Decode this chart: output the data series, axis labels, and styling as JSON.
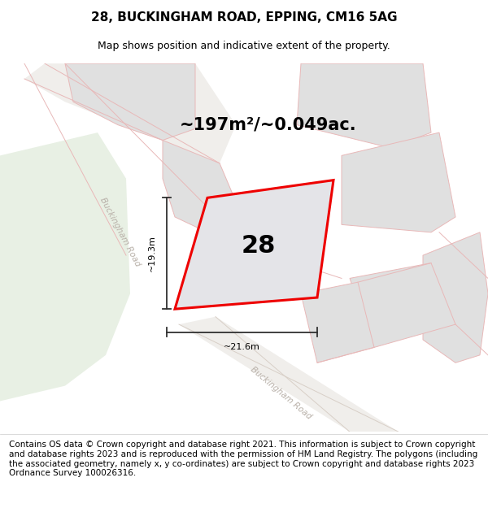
{
  "title": "28, BUCKINGHAM ROAD, EPPING, CM16 5AG",
  "subtitle": "Map shows position and indicative extent of the property.",
  "area_text": "~197m²/~0.049ac.",
  "dim_width": "~21.6m",
  "dim_height": "~19.3m",
  "property_number": "28",
  "footer": "Contains OS data © Crown copyright and database right 2021. This information is subject to Crown copyright and database rights 2023 and is reproduced with the permission of HM Land Registry. The polygons (including the associated geometry, namely x, y co-ordinates) are subject to Crown copyright and database rights 2023 Ordnance Survey 100026316.",
  "map_bg": "#ffffff",
  "green_color": "#e8f0e4",
  "road_bg": "#f0eeeb",
  "road_edge_color": "#d8cfc7",
  "block_fill": "#e0e0e0",
  "block_outline": "#e8b8b8",
  "property_fill": "#e4e4e8",
  "property_outline": "#ee0000",
  "dim_color": "#303030",
  "road_label_color": "#b8b0a8",
  "title_fontsize": 11,
  "subtitle_fontsize": 9,
  "area_fontsize": 15,
  "label_fontsize": 8,
  "footer_fontsize": 7.5
}
